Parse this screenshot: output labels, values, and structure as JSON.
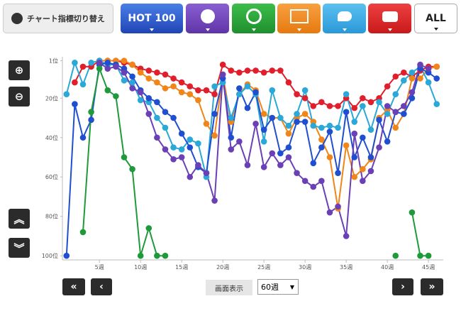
{
  "toolbar": {
    "label": "チャート指標切り替え",
    "buttons": [
      "HOT 100",
      "ALL"
    ]
  },
  "chart_data": {
    "type": "line",
    "x": [
      1,
      2,
      3,
      4,
      5,
      6,
      7,
      8,
      9,
      10,
      11,
      12,
      13,
      14,
      15,
      16,
      17,
      18,
      19,
      20,
      21,
      22,
      23,
      24,
      25,
      26,
      27,
      28,
      29,
      30,
      31,
      32,
      33,
      34,
      35,
      36,
      37,
      38,
      39,
      40,
      41,
      42,
      43,
      44,
      45,
      46
    ],
    "xlim": [
      0.5,
      46.8
    ],
    "xticks": [
      {
        "value": 5,
        "label": "5週"
      },
      {
        "value": 10,
        "label": "10週"
      },
      {
        "value": 15,
        "label": "15週"
      },
      {
        "value": 20,
        "label": "20週"
      },
      {
        "value": 25,
        "label": "25週"
      },
      {
        "value": 30,
        "label": "30週"
      },
      {
        "value": 35,
        "label": "35週"
      },
      {
        "value": 40,
        "label": "40週"
      },
      {
        "value": 45,
        "label": "45週"
      }
    ],
    "ylim": [
      -1,
      101
    ],
    "y_inverted": true,
    "yticks": [
      {
        "value": 1,
        "label": "1位"
      },
      {
        "value": 20,
        "label": "20位"
      },
      {
        "value": 40,
        "label": "40位"
      },
      {
        "value": 60,
        "label": "60位"
      },
      {
        "value": 80,
        "label": "80位"
      },
      {
        "value": 100,
        "label": "100位"
      }
    ],
    "series": [
      {
        "color": "#e01e2c",
        "values": [
          null,
          12,
          4,
          4,
          1,
          1,
          1,
          2,
          3,
          5,
          6,
          7,
          8,
          10,
          12,
          14,
          16,
          16,
          18,
          3,
          6,
          7,
          6,
          6,
          7,
          6,
          6,
          12,
          18,
          20,
          24,
          22,
          24,
          24,
          20,
          25,
          20,
          22,
          20,
          14,
          9,
          7,
          9,
          6,
          4,
          4
        ]
      },
      {
        "color": "#f0861a",
        "values": [
          null,
          null,
          null,
          null,
          1,
          1,
          1,
          1,
          3,
          7,
          10,
          12,
          15,
          14,
          17,
          18,
          21,
          33,
          39,
          8,
          32,
          18,
          13,
          16,
          28,
          30,
          30,
          38,
          30,
          28,
          32,
          41,
          50,
          76,
          44,
          60,
          56,
          51,
          30,
          26,
          35,
          28,
          10,
          10,
          5,
          4
        ]
      },
      {
        "color": "#2aa8d8",
        "values": [
          18,
          2,
          13,
          2,
          1,
          3,
          3,
          11,
          12,
          21,
          22,
          30,
          35,
          45,
          46,
          41,
          43,
          60,
          14,
          12,
          30,
          18,
          14,
          18,
          42,
          16,
          30,
          34,
          28,
          16,
          34,
          35,
          34,
          35,
          18,
          32,
          24,
          36,
          22,
          28,
          18,
          11,
          7,
          4,
          12,
          23
        ]
      },
      {
        "color": "#1f4fd0",
        "values": [
          100,
          23,
          40,
          31,
          3,
          2,
          3,
          5,
          9,
          16,
          20,
          22,
          27,
          30,
          38,
          45,
          55,
          58,
          28,
          10,
          40,
          15,
          25,
          17,
          36,
          30,
          48,
          45,
          32,
          32,
          53,
          45,
          37,
          58,
          27,
          50,
          40,
          50,
          31,
          42,
          27,
          28,
          20,
          5,
          7,
          10
        ]
      },
      {
        "color": "#6b3fb5",
        "values": [
          null,
          null,
          null,
          null,
          2,
          5,
          4,
          7,
          15,
          17,
          28,
          40,
          46,
          51,
          50,
          60,
          54,
          58,
          72,
          8,
          46,
          42,
          54,
          33,
          55,
          48,
          54,
          50,
          58,
          62,
          65,
          62,
          78,
          75,
          90,
          38,
          62,
          57,
          45,
          24,
          27,
          24,
          17,
          3,
          5,
          null
        ]
      },
      {
        "color": "#1e9a3a",
        "values": [
          null,
          null,
          88,
          27,
          5,
          16,
          19,
          50,
          56,
          100,
          86,
          100,
          100,
          null,
          null,
          null,
          null,
          null,
          null,
          null,
          null,
          null,
          null,
          null,
          null,
          null,
          null,
          null,
          null,
          null,
          null,
          null,
          null,
          null,
          null,
          null,
          null,
          null,
          null,
          null,
          100,
          null,
          78,
          100,
          100,
          null
        ]
      }
    ]
  },
  "controls": {
    "display_label": "画面表示",
    "display_value": "60週"
  }
}
